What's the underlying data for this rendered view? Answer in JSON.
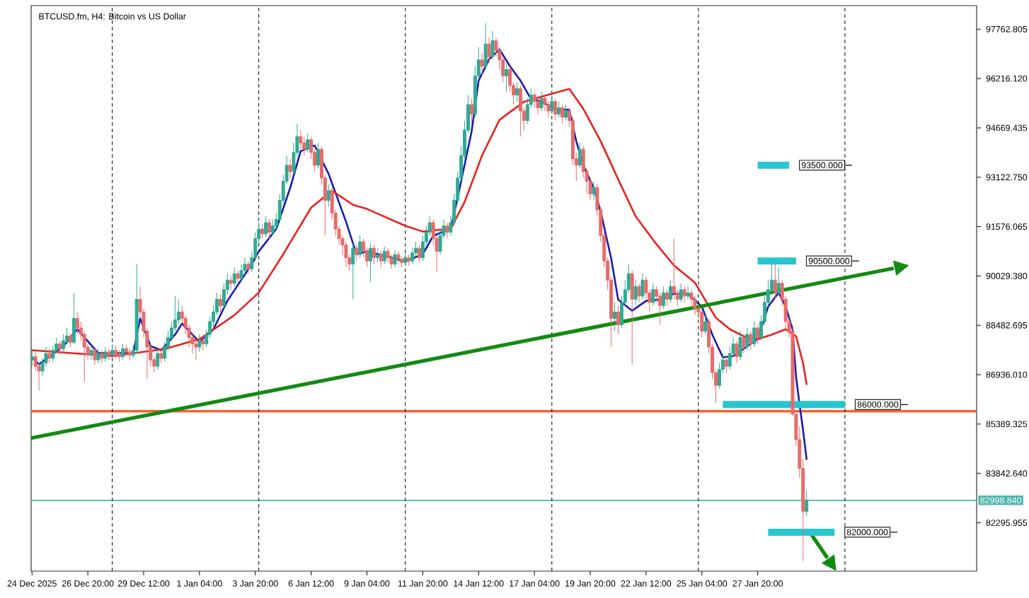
{
  "chart_data": {
    "type": "candlestick",
    "title": "BTCUSD.fm, H4: Bitcoin vs US Dollar",
    "xlim": [
      "2025-12-24T03:00",
      "2026-02-07T07:00"
    ],
    "ylim": [
      80780,
      98500
    ],
    "xticks": [
      {
        "value": "2025-12-24T04:00",
        "label": "24 Dec 2025"
      },
      {
        "value": "2025-12-26T20:00",
        "label": "26 Dec 20:00"
      },
      {
        "value": "2025-12-29T12:00",
        "label": "29 Dec 12:00"
      },
      {
        "value": "2026-01-01T04:00",
        "label": "1 Jan 04:00"
      },
      {
        "value": "2026-01-03T20:00",
        "label": "3 Jan 20:00"
      },
      {
        "value": "2026-01-06T12:00",
        "label": "6 Jan 12:00"
      },
      {
        "value": "2026-01-09T04:00",
        "label": "9 Jan 04:00"
      },
      {
        "value": "2026-01-11T20:00",
        "label": "11 Jan 20:00"
      },
      {
        "value": "2026-01-14T12:00",
        "label": "14 Jan 12:00"
      },
      {
        "value": "2026-01-17T04:00",
        "label": "17 Jan 04:00"
      },
      {
        "value": "2026-01-19T20:00",
        "label": "19 Jan 20:00"
      },
      {
        "value": "2026-01-22T12:00",
        "label": "22 Jan 12:00"
      },
      {
        "value": "2026-01-25T04:00",
        "label": "25 Jan 04:00"
      },
      {
        "value": "2026-01-27T20:00",
        "label": "27 Jan 20:00"
      }
    ],
    "yticks": [
      97762.805,
      {
        "value": 96216.12,
        "label": "96216.120"
      },
      94669.435,
      {
        "value": 93122.75,
        "label": "93122.750"
      },
      91576.065,
      {
        "value": 90029.38,
        "label": "90029.380"
      },
      88482.695,
      {
        "value": 86936.01,
        "label": "86936.010"
      },
      85389.325,
      {
        "value": 83842.64,
        "label": "83842.640"
      },
      82295.955
    ],
    "x": [
      "2025-12-24T04:00",
      "2025-12-24T08:00",
      "2025-12-24T12:00",
      "2025-12-24T16:00",
      "2025-12-24T20:00",
      "2025-12-25T00:00",
      "2025-12-25T04:00",
      "2025-12-25T08:00",
      "2025-12-25T12:00",
      "2025-12-25T16:00",
      "2025-12-25T20:00",
      "2025-12-26T00:00",
      "2025-12-26T04:00",
      "2025-12-26T08:00",
      "2025-12-26T12:00",
      "2025-12-26T16:00",
      "2025-12-26T20:00",
      "2025-12-27T00:00",
      "2025-12-27T04:00",
      "2025-12-27T08:00",
      "2025-12-27T12:00",
      "2025-12-27T16:00",
      "2025-12-27T20:00",
      "2025-12-28T00:00",
      "2025-12-28T04:00",
      "2025-12-28T08:00",
      "2025-12-28T12:00",
      "2025-12-28T16:00",
      "2025-12-28T20:00",
      "2025-12-29T00:00",
      "2025-12-29T04:00",
      "2025-12-29T08:00",
      "2025-12-29T12:00",
      "2025-12-29T16:00",
      "2025-12-29T20:00",
      "2025-12-30T00:00",
      "2025-12-30T04:00",
      "2025-12-30T08:00",
      "2025-12-30T12:00",
      "2025-12-30T16:00",
      "2025-12-30T20:00",
      "2025-12-31T00:00",
      "2025-12-31T04:00",
      "2025-12-31T08:00",
      "2025-12-31T12:00",
      "2025-12-31T16:00",
      "2025-12-31T20:00",
      "2026-01-01T00:00",
      "2026-01-01T04:00",
      "2026-01-01T08:00",
      "2026-01-01T12:00",
      "2026-01-01T16:00",
      "2026-01-01T20:00",
      "2026-01-02T00:00",
      "2026-01-02T04:00",
      "2026-01-02T08:00",
      "2026-01-02T12:00",
      "2026-01-02T16:00",
      "2026-01-02T20:00",
      "2026-01-03T00:00",
      "2026-01-03T04:00",
      "2026-01-03T08:00",
      "2026-01-03T12:00",
      "2026-01-03T16:00",
      "2026-01-03T20:00",
      "2026-01-04T00:00",
      "2026-01-04T04:00",
      "2026-01-04T08:00",
      "2026-01-04T12:00",
      "2026-01-04T16:00",
      "2026-01-04T20:00",
      "2026-01-05T00:00",
      "2026-01-05T04:00",
      "2026-01-05T08:00",
      "2026-01-05T12:00",
      "2026-01-05T16:00",
      "2026-01-05T20:00",
      "2026-01-06T00:00",
      "2026-01-06T04:00",
      "2026-01-06T08:00",
      "2026-01-06T12:00",
      "2026-01-06T16:00",
      "2026-01-06T20:00",
      "2026-01-07T00:00",
      "2026-01-07T04:00",
      "2026-01-07T08:00",
      "2026-01-07T12:00",
      "2026-01-07T16:00",
      "2026-01-07T20:00",
      "2026-01-08T00:00",
      "2026-01-08T04:00",
      "2026-01-08T08:00",
      "2026-01-08T12:00",
      "2026-01-08T16:00",
      "2026-01-08T20:00",
      "2026-01-09T00:00",
      "2026-01-09T04:00",
      "2026-01-09T08:00",
      "2026-01-09T12:00",
      "2026-01-09T16:00",
      "2026-01-09T20:00",
      "2026-01-10T00:00",
      "2026-01-10T04:00",
      "2026-01-10T08:00",
      "2026-01-10T12:00",
      "2026-01-10T16:00",
      "2026-01-10T20:00",
      "2026-01-11T00:00",
      "2026-01-11T04:00",
      "2026-01-11T08:00",
      "2026-01-11T12:00",
      "2026-01-11T16:00",
      "2026-01-11T20:00",
      "2026-01-12T00:00",
      "2026-01-12T04:00",
      "2026-01-12T08:00",
      "2026-01-12T12:00",
      "2026-01-12T16:00",
      "2026-01-12T20:00",
      "2026-01-13T00:00",
      "2026-01-13T04:00",
      "2026-01-13T08:00",
      "2026-01-13T12:00",
      "2026-01-13T16:00",
      "2026-01-13T20:00",
      "2026-01-14T00:00",
      "2026-01-14T04:00",
      "2026-01-14T08:00",
      "2026-01-14T12:00",
      "2026-01-14T16:00",
      "2026-01-14T20:00",
      "2026-01-15T00:00",
      "2026-01-15T04:00",
      "2026-01-15T08:00",
      "2026-01-15T12:00",
      "2026-01-15T16:00",
      "2026-01-15T20:00",
      "2026-01-16T00:00",
      "2026-01-16T04:00",
      "2026-01-16T08:00",
      "2026-01-16T12:00",
      "2026-01-16T16:00",
      "2026-01-16T20:00",
      "2026-01-17T00:00",
      "2026-01-17T04:00",
      "2026-01-17T08:00",
      "2026-01-17T12:00",
      "2026-01-17T16:00",
      "2026-01-17T20:00",
      "2026-01-18T00:00",
      "2026-01-18T04:00",
      "2026-01-18T08:00",
      "2026-01-18T12:00",
      "2026-01-18T16:00",
      "2026-01-18T20:00",
      "2026-01-19T00:00",
      "2026-01-19T04:00",
      "2026-01-19T08:00",
      "2026-01-19T12:00",
      "2026-01-19T16:00",
      "2026-01-19T20:00",
      "2026-01-20T00:00",
      "2026-01-20T04:00",
      "2026-01-20T08:00",
      "2026-01-20T12:00",
      "2026-01-20T16:00",
      "2026-01-20T20:00",
      "2026-01-21T00:00",
      "2026-01-21T04:00",
      "2026-01-21T08:00",
      "2026-01-21T12:00",
      "2026-01-21T16:00",
      "2026-01-21T20:00",
      "2026-01-22T00:00",
      "2026-01-22T04:00",
      "2026-01-22T08:00",
      "2026-01-22T12:00",
      "2026-01-22T16:00",
      "2026-01-22T20:00",
      "2026-01-23T00:00",
      "2026-01-23T04:00",
      "2026-01-23T08:00",
      "2026-01-23T12:00",
      "2026-01-23T16:00",
      "2026-01-23T20:00",
      "2026-01-24T00:00",
      "2026-01-24T04:00",
      "2026-01-24T08:00",
      "2026-01-24T12:00",
      "2026-01-24T16:00",
      "2026-01-24T20:00",
      "2026-01-25T00:00",
      "2026-01-25T04:00",
      "2026-01-25T08:00",
      "2026-01-25T12:00",
      "2026-01-25T16:00",
      "2026-01-25T20:00",
      "2026-01-26T00:00",
      "2026-01-26T04:00",
      "2026-01-26T08:00",
      "2026-01-26T12:00",
      "2026-01-26T16:00",
      "2026-01-26T20:00",
      "2026-01-27T00:00",
      "2026-01-27T04:00",
      "2026-01-27T08:00",
      "2026-01-27T12:00",
      "2026-01-27T16:00",
      "2026-01-27T20:00",
      "2026-01-28T00:00",
      "2026-01-28T04:00",
      "2026-01-28T08:00",
      "2026-01-28T12:00",
      "2026-01-28T16:00",
      "2026-01-28T20:00",
      "2026-01-29T00:00",
      "2026-01-29T04:00",
      "2026-01-29T08:00",
      "2026-01-29T12:00",
      "2026-01-29T16:00",
      "2026-01-29T20:00",
      "2026-01-30T00:00",
      "2026-01-30T04:00"
    ],
    "ohlc": [
      [
        87400,
        87700,
        87200,
        87500
      ],
      [
        87500,
        87650,
        87050,
        87200
      ],
      [
        87200,
        87300,
        86450,
        87050
      ],
      [
        87050,
        87450,
        86900,
        87300
      ],
      [
        87300,
        87800,
        87200,
        87600
      ],
      [
        87600,
        87750,
        87300,
        87450
      ],
      [
        87450,
        87850,
        87350,
        87700
      ],
      [
        87700,
        88100,
        87600,
        87900
      ],
      [
        87900,
        88000,
        87600,
        87750
      ],
      [
        87750,
        88200,
        87650,
        88000
      ],
      [
        88000,
        88400,
        87900,
        88150
      ],
      [
        88150,
        88250,
        87800,
        87950
      ],
      [
        87950,
        89500,
        87900,
        88700
      ],
      [
        88700,
        88900,
        88200,
        88400
      ],
      [
        88400,
        88600,
        88000,
        88200
      ],
      [
        88200,
        88300,
        86700,
        87800
      ],
      [
        87800,
        87900,
        87400,
        87550
      ],
      [
        87550,
        87850,
        87400,
        87700
      ],
      [
        87700,
        87800,
        87250,
        87400
      ],
      [
        87400,
        87750,
        87300,
        87600
      ],
      [
        87600,
        87700,
        87300,
        87450
      ],
      [
        87450,
        87800,
        87350,
        87650
      ],
      [
        87650,
        87750,
        87400,
        87550
      ],
      [
        87550,
        87900,
        87450,
        87700
      ],
      [
        87700,
        87850,
        87450,
        87600
      ],
      [
        87600,
        87700,
        87350,
        87500
      ],
      [
        87500,
        87900,
        87400,
        87750
      ],
      [
        87750,
        87850,
        87500,
        87650
      ],
      [
        87650,
        87750,
        87400,
        87550
      ],
      [
        87550,
        87850,
        87450,
        87700
      ],
      [
        87700,
        90400,
        87600,
        89300
      ],
      [
        89300,
        89700,
        88700,
        88900
      ],
      [
        88900,
        89000,
        88100,
        88300
      ],
      [
        88300,
        88400,
        86800,
        87800
      ],
      [
        87800,
        87900,
        87200,
        87400
      ],
      [
        87400,
        87500,
        87000,
        87200
      ],
      [
        87200,
        87750,
        87100,
        87600
      ],
      [
        87600,
        87700,
        87300,
        87450
      ],
      [
        87450,
        87950,
        87350,
        87800
      ],
      [
        87800,
        88300,
        87700,
        88100
      ],
      [
        88100,
        88600,
        88000,
        88400
      ],
      [
        88400,
        89400,
        88300,
        88650
      ],
      [
        88650,
        89300,
        88500,
        88900
      ],
      [
        88900,
        89100,
        88500,
        88700
      ],
      [
        88700,
        88800,
        88200,
        88400
      ],
      [
        88400,
        88500,
        87800,
        88100
      ],
      [
        88100,
        88200,
        87600,
        87900
      ],
      [
        87900,
        88000,
        87400,
        87800
      ],
      [
        87800,
        88200,
        87650,
        88000
      ],
      [
        88000,
        88150,
        87700,
        87900
      ],
      [
        87900,
        88350,
        87800,
        88200
      ],
      [
        88200,
        88750,
        88100,
        88600
      ],
      [
        88600,
        89100,
        88450,
        88900
      ],
      [
        88900,
        89500,
        88800,
        89300
      ],
      [
        89300,
        89450,
        88900,
        89100
      ],
      [
        89100,
        89800,
        89000,
        89600
      ],
      [
        89600,
        90100,
        89450,
        89900
      ],
      [
        89900,
        90050,
        89600,
        89800
      ],
      [
        89800,
        90300,
        89700,
        90100
      ],
      [
        90100,
        90200,
        89800,
        89950
      ],
      [
        89950,
        90400,
        89850,
        90200
      ],
      [
        90200,
        90600,
        90100,
        90400
      ],
      [
        90400,
        90500,
        90100,
        90250
      ],
      [
        90250,
        90800,
        90150,
        90600
      ],
      [
        90600,
        91400,
        90500,
        91200
      ],
      [
        91200,
        91700,
        91050,
        91500
      ],
      [
        91500,
        91650,
        91200,
        91350
      ],
      [
        91350,
        91900,
        91250,
        91700
      ],
      [
        91700,
        91800,
        91200,
        91400
      ],
      [
        91400,
        91800,
        91300,
        91600
      ],
      [
        91600,
        92000,
        91450,
        91800
      ],
      [
        91800,
        92600,
        91700,
        92400
      ],
      [
        92400,
        93200,
        92300,
        93000
      ],
      [
        93000,
        93800,
        92900,
        93500
      ],
      [
        93500,
        93700,
        93100,
        93300
      ],
      [
        93300,
        94200,
        93200,
        93900
      ],
      [
        93900,
        94800,
        93800,
        94400
      ],
      [
        94400,
        94600,
        94000,
        94200
      ],
      [
        94200,
        94400,
        93800,
        94000
      ],
      [
        94000,
        94500,
        93900,
        94300
      ],
      [
        94300,
        94400,
        93700,
        93900
      ],
      [
        93900,
        94000,
        93300,
        93500
      ],
      [
        93500,
        94200,
        93400,
        94000
      ],
      [
        94000,
        94100,
        92900,
        93100
      ],
      [
        93100,
        93200,
        91300,
        92400
      ],
      [
        92400,
        92900,
        92200,
        92700
      ],
      [
        92700,
        92800,
        91800,
        92000
      ],
      [
        92000,
        92100,
        91300,
        91500
      ],
      [
        91500,
        91600,
        91000,
        91200
      ],
      [
        91200,
        91300,
        90700,
        91000
      ],
      [
        91000,
        91100,
        90300,
        90600
      ],
      [
        90600,
        90700,
        90200,
        90400
      ],
      [
        90400,
        91050,
        89300,
        90900
      ],
      [
        90900,
        91000,
        90500,
        90700
      ],
      [
        90700,
        91300,
        90600,
        91100
      ],
      [
        91100,
        91200,
        90600,
        90800
      ],
      [
        90800,
        90900,
        90300,
        90500
      ],
      [
        90500,
        91050,
        89850,
        90900
      ],
      [
        90900,
        91000,
        90400,
        90600
      ],
      [
        90600,
        90900,
        90450,
        90700
      ],
      [
        90700,
        90800,
        90300,
        90500
      ],
      [
        90500,
        90950,
        90400,
        90800
      ],
      [
        90800,
        90900,
        90450,
        90600
      ],
      [
        90600,
        90700,
        90250,
        90400
      ],
      [
        90400,
        90850,
        90300,
        90700
      ],
      [
        90700,
        90800,
        90400,
        90550
      ],
      [
        90550,
        90650,
        90300,
        90450
      ],
      [
        90450,
        90750,
        90350,
        90600
      ],
      [
        90600,
        90700,
        90350,
        90500
      ],
      [
        90500,
        90900,
        90400,
        90750
      ],
      [
        90750,
        91100,
        90650,
        90900
      ],
      [
        90900,
        91000,
        90450,
        90600
      ],
      [
        90600,
        91300,
        90500,
        91100
      ],
      [
        91100,
        91600,
        91000,
        91400
      ],
      [
        91400,
        91900,
        91300,
        91700
      ],
      [
        91700,
        91800,
        91000,
        91200
      ],
      [
        91200,
        91300,
        90150,
        90800
      ],
      [
        90800,
        91500,
        90700,
        91300
      ],
      [
        91300,
        91800,
        91200,
        91600
      ],
      [
        91600,
        91700,
        91200,
        91400
      ],
      [
        91400,
        91900,
        91300,
        91700
      ],
      [
        91700,
        92600,
        91600,
        92400
      ],
      [
        92400,
        93300,
        92300,
        93100
      ],
      [
        93100,
        94100,
        93000,
        93800
      ],
      [
        93800,
        94900,
        93700,
        94600
      ],
      [
        94600,
        95700,
        94500,
        95400
      ],
      [
        95400,
        95600,
        94800,
        95100
      ],
      [
        95100,
        96600,
        95000,
        96300
      ],
      [
        96300,
        97200,
        96200,
        96800
      ],
      [
        96800,
        97000,
        96300,
        96600
      ],
      [
        96600,
        97950,
        96500,
        97300
      ],
      [
        97300,
        97500,
        96700,
        96900
      ],
      [
        96900,
        97700,
        96800,
        97400
      ],
      [
        97400,
        97500,
        96900,
        97100
      ],
      [
        97100,
        97200,
        96500,
        96800
      ],
      [
        96800,
        96900,
        96100,
        96300
      ],
      [
        96300,
        96700,
        95800,
        96500
      ],
      [
        96500,
        96600,
        95800,
        96000
      ],
      [
        96000,
        96100,
        95400,
        95700
      ],
      [
        95700,
        96100,
        95500,
        95900
      ],
      [
        95900,
        96000,
        94400,
        95200
      ],
      [
        95200,
        95300,
        94600,
        94900
      ],
      [
        94900,
        95600,
        94800,
        95400
      ],
      [
        95400,
        95900,
        95300,
        95700
      ],
      [
        95700,
        95800,
        95300,
        95500
      ],
      [
        95500,
        95600,
        95100,
        95300
      ],
      [
        95300,
        95800,
        95200,
        95600
      ],
      [
        95600,
        95700,
        95200,
        95400
      ],
      [
        95400,
        95500,
        95000,
        95200
      ],
      [
        95200,
        95700,
        95100,
        95500
      ],
      [
        95500,
        95600,
        94900,
        95100
      ],
      [
        95100,
        95500,
        95000,
        95300
      ],
      [
        95300,
        95400,
        94800,
        95000
      ],
      [
        95000,
        95400,
        94900,
        95200
      ],
      [
        95200,
        95300,
        94700,
        94900
      ],
      [
        94900,
        95000,
        93500,
        93700
      ],
      [
        93700,
        93900,
        93000,
        93500
      ],
      [
        93500,
        94200,
        93400,
        94000
      ],
      [
        94000,
        94100,
        93100,
        93300
      ],
      [
        93300,
        93400,
        92600,
        93000
      ],
      [
        93000,
        93100,
        92400,
        92600
      ],
      [
        92600,
        93000,
        92400,
        92800
      ],
      [
        92800,
        92900,
        91900,
        92100
      ],
      [
        92100,
        92200,
        91100,
        91300
      ],
      [
        91300,
        91400,
        90300,
        90500
      ],
      [
        90500,
        90600,
        89600,
        89900
      ],
      [
        89900,
        90000,
        87800,
        88700
      ],
      [
        88700,
        89200,
        88300,
        88900
      ],
      [
        88900,
        89100,
        88200,
        88500
      ],
      [
        88500,
        89400,
        88400,
        89200
      ],
      [
        89200,
        89900,
        89100,
        89600
      ],
      [
        89600,
        90400,
        89500,
        90100
      ],
      [
        90100,
        90200,
        87250,
        89300
      ],
      [
        89300,
        89900,
        89100,
        89700
      ],
      [
        89700,
        89800,
        89200,
        89400
      ],
      [
        89400,
        90100,
        89300,
        89900
      ],
      [
        89900,
        90000,
        89300,
        89500
      ],
      [
        89500,
        89600,
        88900,
        89200
      ],
      [
        89200,
        89800,
        89100,
        89600
      ],
      [
        89600,
        89700,
        89200,
        89400
      ],
      [
        89400,
        89500,
        88500,
        89100
      ],
      [
        89100,
        89700,
        89000,
        89500
      ],
      [
        89500,
        89600,
        89100,
        89300
      ],
      [
        89300,
        89900,
        89200,
        89700
      ],
      [
        89700,
        91200,
        89300,
        89500
      ],
      [
        89500,
        89600,
        89100,
        89300
      ],
      [
        89300,
        89800,
        89200,
        89600
      ],
      [
        89600,
        89700,
        89200,
        89400
      ],
      [
        89400,
        89700,
        89300,
        89500
      ],
      [
        89500,
        89600,
        89100,
        89300
      ],
      [
        89300,
        89400,
        88800,
        89000
      ],
      [
        89000,
        89100,
        88700,
        88900
      ],
      [
        88900,
        89000,
        88100,
        88300
      ],
      [
        88300,
        88800,
        88200,
        88600
      ],
      [
        88600,
        88700,
        87600,
        87800
      ],
      [
        87800,
        87900,
        86800,
        87000
      ],
      [
        87000,
        87100,
        86050,
        86600
      ],
      [
        86600,
        87300,
        86500,
        87100
      ],
      [
        87100,
        87600,
        87000,
        87400
      ],
      [
        87400,
        87500,
        87000,
        87200
      ],
      [
        87200,
        87800,
        87100,
        87600
      ],
      [
        87600,
        88100,
        87500,
        87900
      ],
      [
        87900,
        88000,
        87300,
        87500
      ],
      [
        87500,
        88300,
        87400,
        88100
      ],
      [
        88100,
        88200,
        87600,
        87800
      ],
      [
        87800,
        88400,
        87700,
        88200
      ],
      [
        88200,
        88300,
        87700,
        87900
      ],
      [
        87900,
        88600,
        87800,
        88400
      ],
      [
        88400,
        88500,
        87900,
        88100
      ],
      [
        88100,
        88800,
        88000,
        88600
      ],
      [
        88600,
        89400,
        88500,
        89200
      ],
      [
        89200,
        89900,
        89100,
        89600
      ],
      [
        89600,
        90400,
        89500,
        89900
      ],
      [
        89900,
        90400,
        89300,
        89500
      ],
      [
        89500,
        90300,
        89400,
        89800
      ],
      [
        89800,
        89900,
        89100,
        89300
      ],
      [
        89300,
        89400,
        88400,
        88600
      ],
      [
        88600,
        88700,
        88100,
        88300
      ],
      [
        88300,
        88400,
        85650,
        85700
      ],
      [
        85700,
        85700,
        84700,
        84900
      ],
      [
        84900,
        85300,
        83700,
        84000
      ],
      [
        84000,
        84300,
        81100,
        82650
      ],
      [
        82650,
        83300,
        82500,
        82998.84
      ]
    ],
    "series": [
      {
        "type": "line",
        "color": "#1c1ca8",
        "x": [
          "2025-12-24T04:00",
          "2025-12-24T12:00",
          "2025-12-25T16:00",
          "2025-12-26T08:00",
          "2025-12-27T08:00",
          "2025-12-29T00:00",
          "2025-12-29T08:00",
          "2025-12-29T20:00",
          "2025-12-30T08:00",
          "2025-12-31T00:00",
          "2025-12-31T08:00",
          "2026-01-01T04:00",
          "2026-01-01T20:00",
          "2026-01-02T12:00",
          "2026-01-03T04:00",
          "2026-01-03T16:00",
          "2026-01-04T00:00",
          "2026-01-04T20:00",
          "2026-01-05T12:00",
          "2026-01-06T00:00",
          "2026-01-06T16:00",
          "2026-01-07T08:00",
          "2026-01-08T04:00",
          "2026-01-08T16:00",
          "2026-01-09T04:00",
          "2026-01-11T00:00",
          "2026-01-11T20:00",
          "2026-01-12T08:00",
          "2026-01-13T04:00",
          "2026-01-13T12:00",
          "2026-01-14T04:00",
          "2026-01-14T12:00",
          "2026-01-15T00:00",
          "2026-01-15T12:00",
          "2026-01-16T00:00",
          "2026-01-16T12:00",
          "2026-01-17T00:00",
          "2026-01-17T12:00",
          "2026-01-18T04:00",
          "2026-01-18T20:00",
          "2026-01-19T04:00",
          "2026-01-19T12:00",
          "2026-01-20T00:00",
          "2026-01-20T08:00",
          "2026-01-20T20:00",
          "2026-01-21T04:00",
          "2026-01-21T20:00",
          "2026-01-22T12:00",
          "2026-01-23T04:00",
          "2026-01-23T20:00",
          "2026-01-24T12:00",
          "2026-01-25T04:00",
          "2026-01-25T16:00",
          "2026-01-26T04:00",
          "2026-01-26T16:00",
          "2026-01-27T08:00",
          "2026-01-27T20:00",
          "2026-01-28T08:00",
          "2026-01-28T20:00",
          "2026-01-29T04:00",
          "2026-01-29T12:00",
          "2026-01-29T16:00",
          "2026-01-29T20:00",
          "2026-01-30T00:00",
          "2026-01-30T04:00"
        ],
        "values": [
          87480,
          87260,
          87830,
          88360,
          87610,
          87610,
          88700,
          87830,
          87700,
          88190,
          88540,
          87960,
          88360,
          89250,
          89910,
          90400,
          90800,
          91500,
          92790,
          93940,
          94120,
          93230,
          91730,
          90710,
          90800,
          90490,
          90710,
          91290,
          91510,
          92480,
          94560,
          96150,
          96820,
          97130,
          96600,
          96150,
          95580,
          95490,
          95270,
          95230,
          94250,
          93500,
          92790,
          92040,
          90580,
          89290,
          88940,
          89250,
          89290,
          89470,
          89470,
          89070,
          88190,
          87480,
          87520,
          87830,
          88050,
          89070,
          89510,
          89070,
          88360,
          86860,
          86000,
          85200,
          84290
        ]
      },
      {
        "type": "line",
        "color": "#e8221f",
        "x": [
          "2025-12-24T04:00",
          "2025-12-28T00:00",
          "2025-12-30T12:00",
          "2026-01-01T04:00",
          "2026-01-02T20:00",
          "2026-01-04T00:00",
          "2026-01-05T04:00",
          "2026-01-06T12:00",
          "2026-01-07T12:00",
          "2026-01-08T12:00",
          "2026-01-09T04:00",
          "2026-01-11T00:00",
          "2026-01-11T20:00",
          "2026-01-13T04:00",
          "2026-01-13T20:00",
          "2026-01-14T16:00",
          "2026-01-15T12:00",
          "2026-01-16T16:00",
          "2026-01-17T20:00",
          "2026-01-18T20:00",
          "2026-01-19T12:00",
          "2026-01-20T08:00",
          "2026-01-21T04:00",
          "2026-01-22T00:00",
          "2026-01-23T00:00",
          "2026-01-23T20:00",
          "2026-01-24T20:00",
          "2026-01-25T20:00",
          "2026-01-26T12:00",
          "2026-01-27T04:00",
          "2026-01-27T20:00",
          "2026-01-28T12:00",
          "2026-01-29T04:00",
          "2026-01-29T16:00",
          "2026-01-30T00:00",
          "2026-01-30T04:00"
        ],
        "values": [
          87700,
          87520,
          87740,
          88050,
          88800,
          89510,
          90710,
          92170,
          92700,
          92260,
          92130,
          91600,
          91420,
          91510,
          92350,
          93810,
          94920,
          95490,
          95710,
          95890,
          95270,
          94250,
          93060,
          91900,
          91020,
          90360,
          89820,
          88720,
          88360,
          88140,
          88050,
          88190,
          88360,
          88140,
          87300,
          86640
        ]
      },
      {
        "type": "line",
        "color": "#138a13",
        "x": [
          "2025-12-24T03:00",
          "2026-02-03T08:00"
        ],
        "values": [
          84950,
          90270
        ]
      },
      {
        "type": "line",
        "color": "#138a13",
        "x": [
          "2026-01-30T08:00",
          "2026-01-31T04:00"
        ],
        "values": [
          81990,
          81190
        ]
      },
      {
        "type": "line",
        "color": "#29c6cf",
        "x": [
          "2026-01-27T20:00",
          "2026-01-29T08:00"
        ],
        "values": [
          93500,
          93500
        ]
      },
      {
        "type": "line",
        "color": "#29c6cf",
        "x": [
          "2026-01-27T20:00",
          "2026-01-29T16:00"
        ],
        "values": [
          90500,
          90500
        ]
      },
      {
        "type": "line",
        "color": "#29c6cf",
        "x": [
          "2026-01-26T04:00",
          "2026-02-01T00:00"
        ],
        "values": [
          86000,
          86000
        ]
      },
      {
        "type": "line",
        "color": "#29c6cf",
        "x": [
          "2026-01-28T08:00",
          "2026-01-31T12:00"
        ],
        "values": [
          82000,
          82000
        ]
      }
    ],
    "ref_lines": [
      {
        "axis": "y",
        "value": 85790,
        "color": "#f4632a"
      },
      {
        "axis": "y",
        "value": 82998.84,
        "label": "82998.840",
        "color": "#4db6ac"
      },
      {
        "axis": "x",
        "value": "2025-12-28T00:00",
        "line_style": "dashed",
        "color": "#000000"
      },
      {
        "axis": "x",
        "value": "2026-01-04T00:00",
        "line_style": "dashed",
        "color": "#000000"
      },
      {
        "axis": "x",
        "value": "2026-01-11T00:00",
        "line_style": "dashed",
        "color": "#000000"
      },
      {
        "axis": "x",
        "value": "2026-01-18T00:00",
        "line_style": "dashed",
        "color": "#000000"
      },
      {
        "axis": "x",
        "value": "2026-01-25T00:00",
        "line_style": "dashed",
        "color": "#000000"
      },
      {
        "axis": "x",
        "value": "2026-02-01T00:00",
        "line_style": "dashed",
        "color": "#000000"
      }
    ],
    "annotations": [
      {
        "text": "93500.000",
        "x": "2026-01-29T08:00",
        "y": 93500
      },
      {
        "text": "90500.000",
        "x": "2026-01-29T16:00",
        "y": 90500
      },
      {
        "text": "86000.000",
        "x": "2026-02-01T00:00",
        "y": 86000
      },
      {
        "text": "82000.000",
        "x": "2026-01-31T12:00",
        "y": 82000
      }
    ]
  }
}
